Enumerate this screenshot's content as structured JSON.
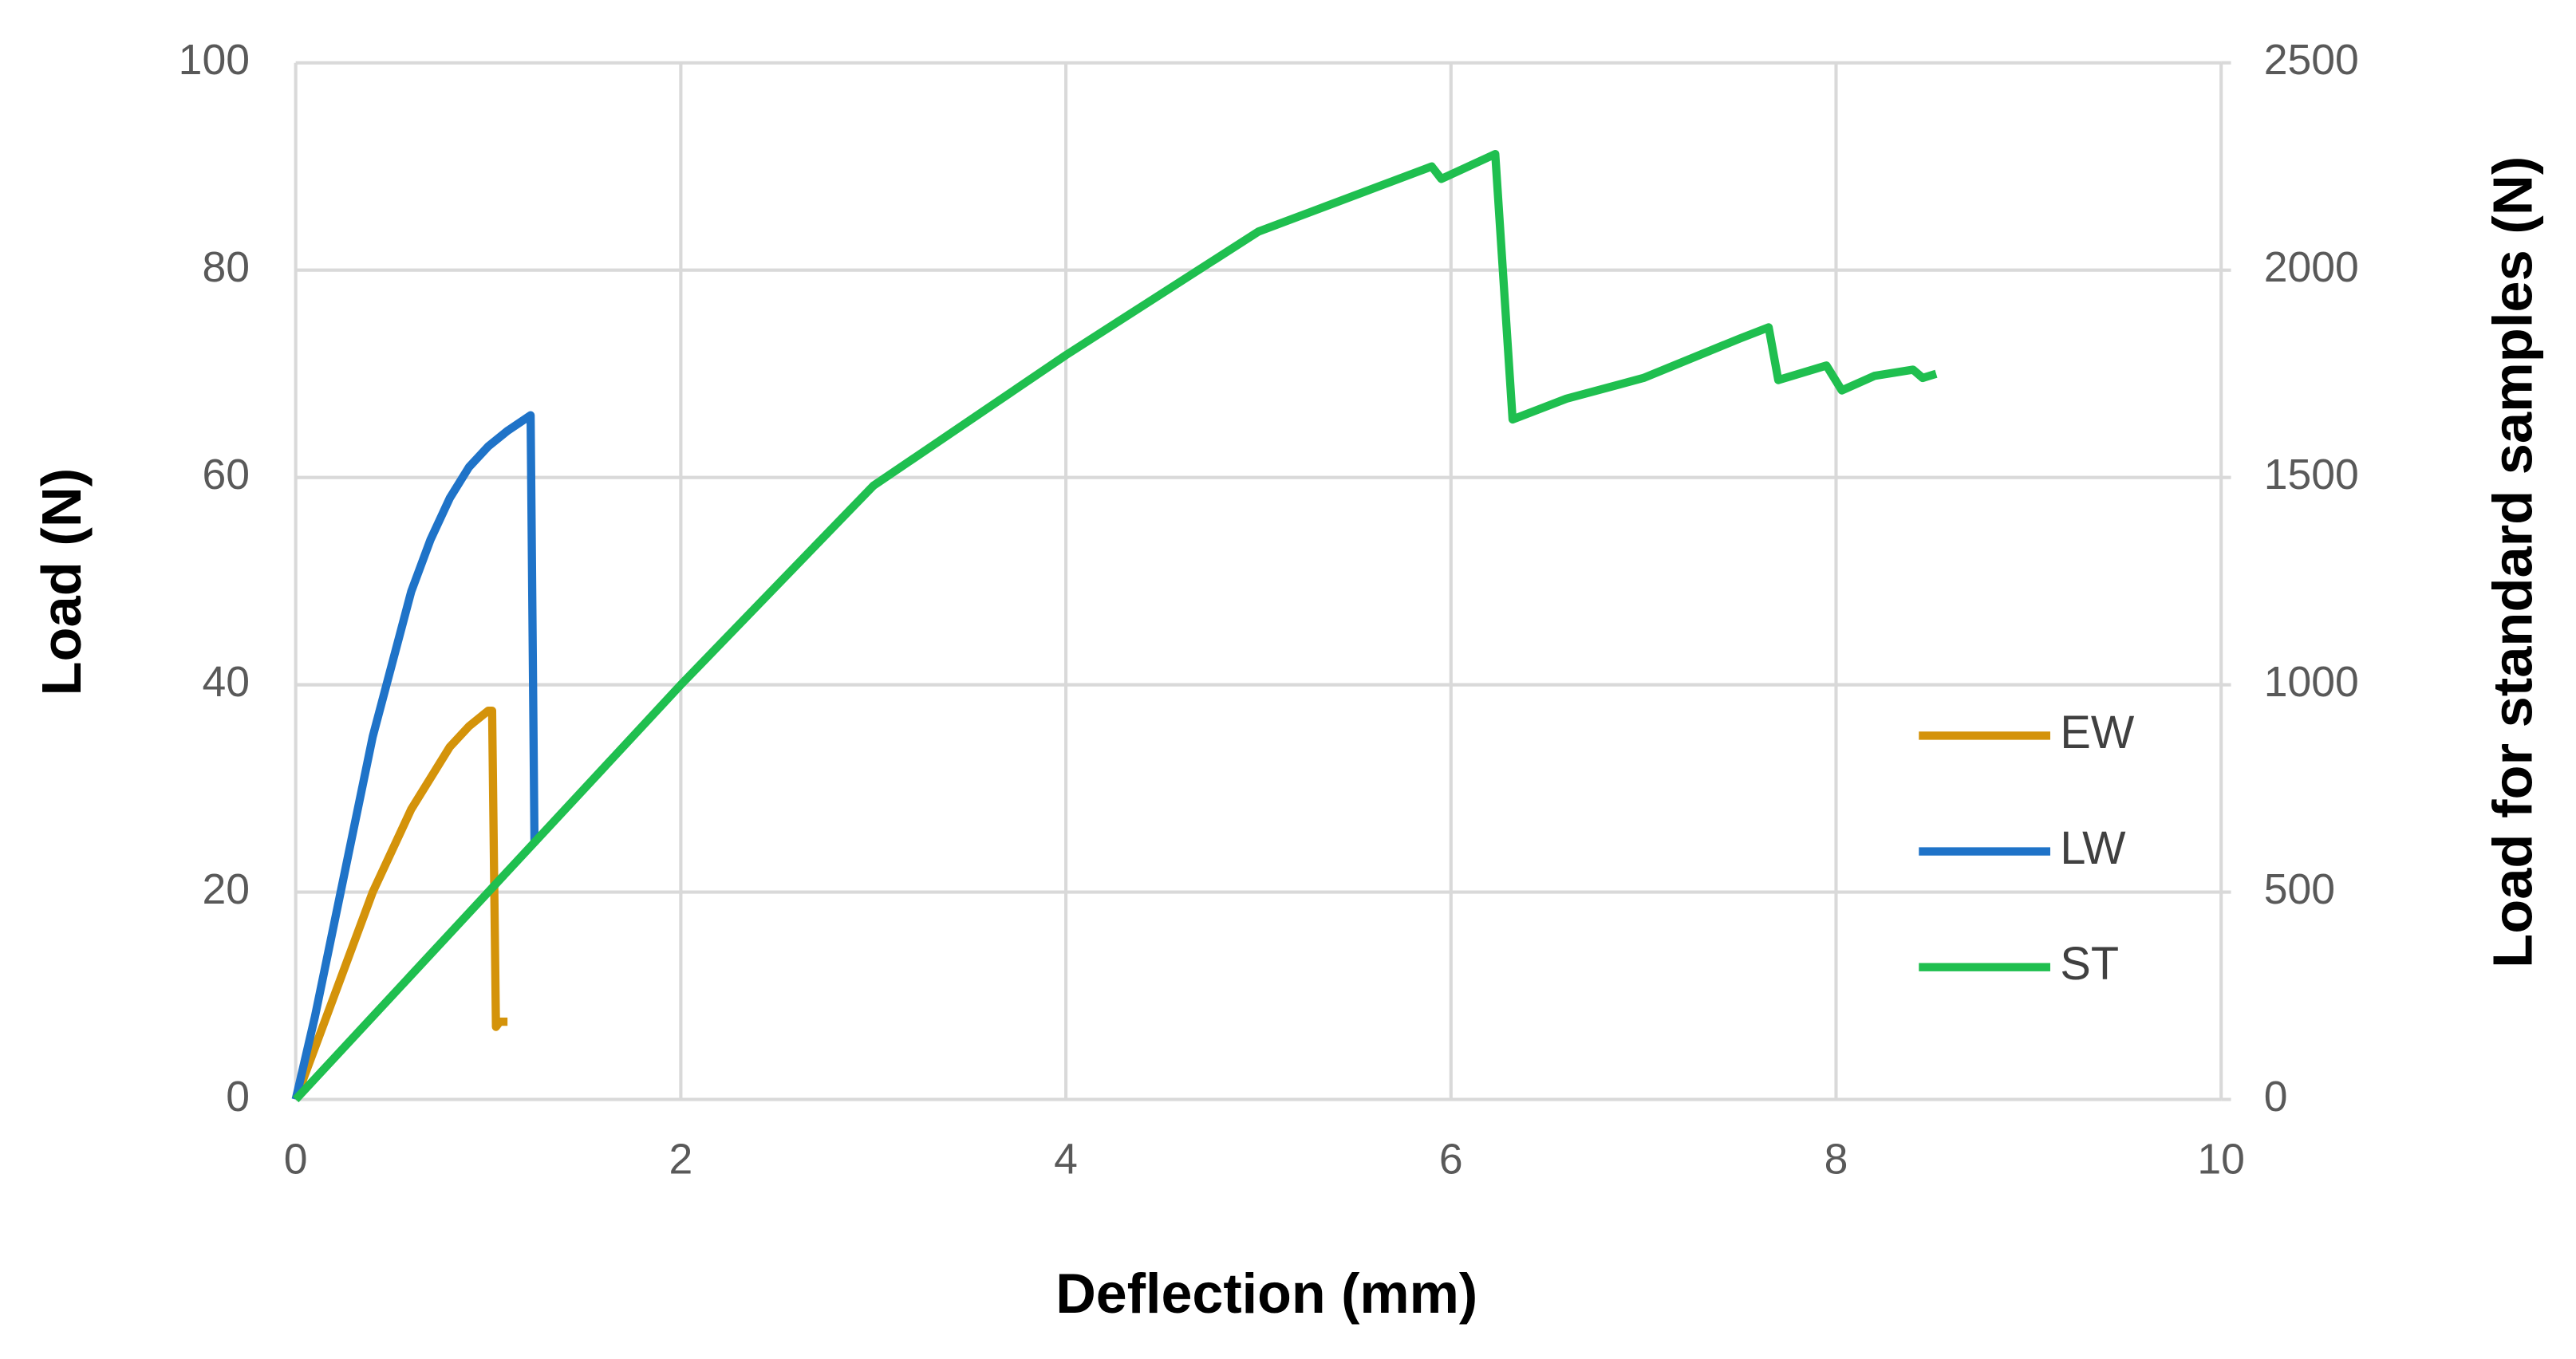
{
  "chart_data": {
    "type": "line",
    "x_label": "Deflection (mm)",
    "y_label": "Load (N)",
    "y2_label": "Load for standard samples (N)",
    "xlim": [
      0,
      10
    ],
    "xticks": [
      0,
      2,
      4,
      6,
      8,
      10
    ],
    "ylim": [
      0,
      100
    ],
    "yticks": [
      0,
      20,
      40,
      60,
      80,
      100
    ],
    "y2lim": [
      0,
      2500
    ],
    "y2ticks": [
      0,
      500,
      1000,
      1500,
      2000,
      2500
    ],
    "grid": true,
    "legend": "right",
    "series": [
      {
        "name": "EW",
        "color": "#d4930a",
        "x": [
          0,
          0.1,
          0.2,
          0.3,
          0.4,
          0.5,
          0.6,
          0.7,
          0.8,
          0.9,
          1.0,
          1.02,
          1.04,
          1.06,
          1.1
        ],
        "values": [
          0,
          5,
          10,
          15,
          20,
          24,
          28,
          31,
          34,
          36,
          37.5,
          37.5,
          7,
          7.5,
          7.5
        ]
      },
      {
        "name": "LW",
        "color": "#1f73c8",
        "x": [
          0,
          0.1,
          0.2,
          0.3,
          0.4,
          0.5,
          0.6,
          0.7,
          0.8,
          0.9,
          1.0,
          1.1,
          1.22,
          1.24,
          1.26
        ],
        "values": [
          0,
          8,
          17,
          26,
          35,
          42,
          49,
          54,
          58,
          61,
          63,
          64.5,
          66,
          25,
          25
        ]
      },
      {
        "name": "ST",
        "color": "#1fbf4f",
        "axis": "y2",
        "x": [
          0,
          1,
          2,
          3,
          4,
          5,
          5.9,
          5.95,
          6.23,
          6.32,
          6.6,
          7,
          7.5,
          7.65,
          7.7,
          7.95,
          8.03,
          8.2,
          8.4,
          8.45,
          8.52
        ],
        "values": [
          0,
          500,
          1000,
          1480,
          1795,
          2093,
          2250,
          2220,
          2280,
          1640,
          1690,
          1740,
          1835,
          1862,
          1735,
          1770,
          1710,
          1745,
          1760,
          1740,
          1750
        ]
      }
    ]
  }
}
